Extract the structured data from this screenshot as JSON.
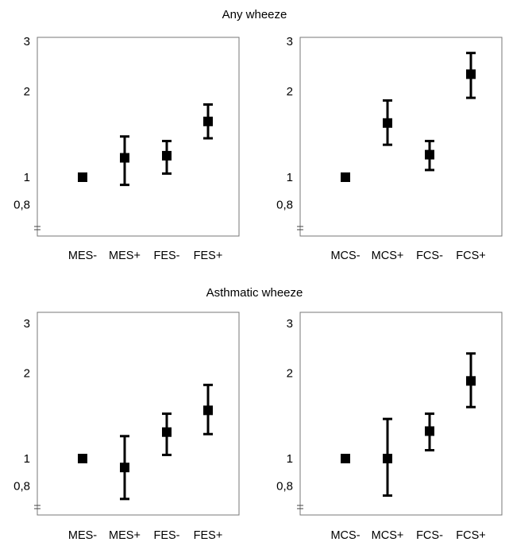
{
  "sections": [
    {
      "title": "Any wheeze"
    },
    {
      "title": "Asthmatic wheeze"
    }
  ],
  "chart_data": [
    {
      "type": "scatter",
      "section": "Any wheeze",
      "yscale": "log",
      "ylim": [
        0.6,
        3
      ],
      "ytick_labels": [
        "3",
        "2",
        "1",
        "0,8"
      ],
      "ytick_values": [
        3,
        2,
        1,
        0.8
      ],
      "categories": [
        "MES-",
        "MES+",
        "FES-",
        "FES+"
      ],
      "values": [
        1.0,
        1.17,
        1.19,
        1.57
      ],
      "ci_lower": [
        1.0,
        0.94,
        1.03,
        1.37
      ],
      "ci_upper": [
        1.0,
        1.39,
        1.34,
        1.8
      ]
    },
    {
      "type": "scatter",
      "section": "Any wheeze",
      "yscale": "log",
      "ylim": [
        0.6,
        3
      ],
      "ytick_labels": [
        "3",
        "2",
        "1",
        "0,8"
      ],
      "ytick_values": [
        3,
        2,
        1,
        0.8
      ],
      "categories": [
        "MCS-",
        "MCS+",
        "FCS-",
        "FCS+"
      ],
      "values": [
        1.0,
        1.55,
        1.2,
        2.3
      ],
      "ci_lower": [
        1.0,
        1.3,
        1.06,
        1.9
      ],
      "ci_upper": [
        1.0,
        1.86,
        1.34,
        2.73
      ]
    },
    {
      "type": "scatter",
      "section": "Asthmatic wheeze",
      "yscale": "log",
      "ylim": [
        0.6,
        3
      ],
      "ytick_labels": [
        "3",
        "2",
        "1",
        "0,8"
      ],
      "ytick_values": [
        3,
        2,
        1,
        0.8
      ],
      "categories": [
        "MES-",
        "MES+",
        "FES-",
        "FES+"
      ],
      "values": [
        1.0,
        0.93,
        1.24,
        1.48
      ],
      "ci_lower": [
        1.0,
        0.72,
        1.03,
        1.22
      ],
      "ci_upper": [
        1.0,
        1.2,
        1.44,
        1.82
      ]
    },
    {
      "type": "scatter",
      "section": "Asthmatic wheeze",
      "yscale": "log",
      "ylim": [
        0.6,
        3
      ],
      "ytick_labels": [
        "3",
        "2",
        "1",
        "0,8"
      ],
      "ytick_values": [
        3,
        2,
        1,
        0.8
      ],
      "categories": [
        "MCS-",
        "MCS+",
        "FCS-",
        "FCS+"
      ],
      "values": [
        1.0,
        1.0,
        1.25,
        1.88
      ],
      "ci_lower": [
        1.0,
        0.74,
        1.07,
        1.52
      ],
      "ci_upper": [
        1.0,
        1.38,
        1.44,
        2.35
      ]
    }
  ]
}
